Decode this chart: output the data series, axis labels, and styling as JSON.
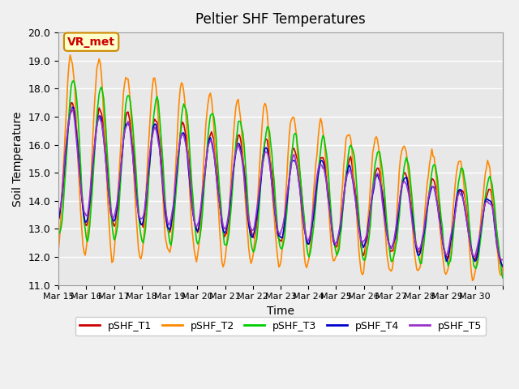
{
  "title": "Peltier SHF Temperatures",
  "xlabel": "Time",
  "ylabel": "Soil Temperature",
  "ylim": [
    11.0,
    20.0
  ],
  "yticks": [
    11.0,
    12.0,
    13.0,
    14.0,
    15.0,
    16.0,
    17.0,
    18.0,
    19.0,
    20.0
  ],
  "xtick_labels": [
    "Mar 15",
    "Mar 16",
    "Mar 17",
    "Mar 18",
    "Mar 19",
    "Mar 20",
    "Mar 21",
    "Mar 22",
    "Mar 23",
    "Mar 24",
    "Mar 25",
    "Mar 26",
    "Mar 27",
    "Mar 28",
    "Mar 29",
    "Mar 30"
  ],
  "n_days": 16,
  "pts_per_day": 24,
  "colors": {
    "pSHF_T1": "#cc0000",
    "pSHF_T2": "#ff8800",
    "pSHF_T3": "#00cc00",
    "pSHF_T4": "#0000cc",
    "pSHF_T5": "#9933cc"
  },
  "legend_labels": [
    "pSHF_T1",
    "pSHF_T2",
    "pSHF_T3",
    "pSHF_T4",
    "pSHF_T5"
  ],
  "background_color": "#e8e8e8",
  "plot_bg_color": "#e8e8e8",
  "annotation_text": "VR_met",
  "annotation_bg": "#ffffcc",
  "annotation_border": "#cc8800"
}
